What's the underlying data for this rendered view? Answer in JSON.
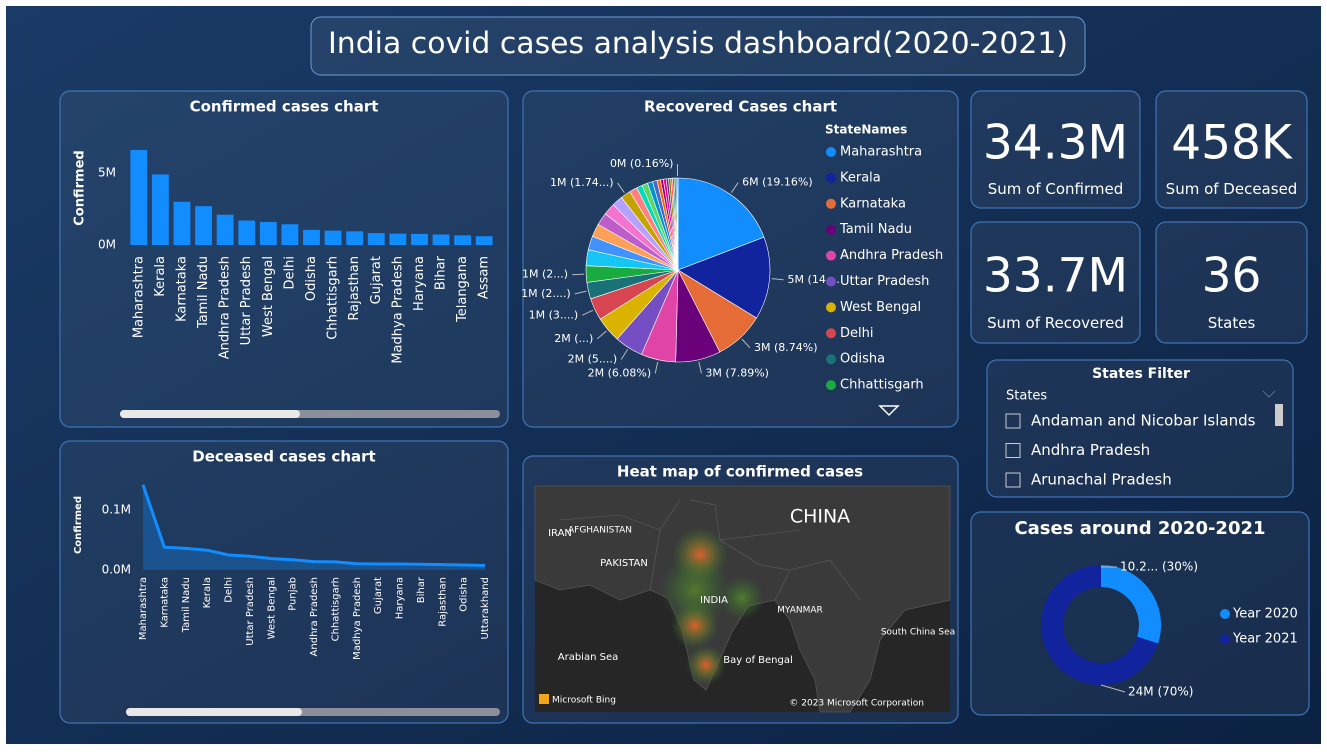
{
  "title": "India covid cases analysis dashboard(2020-2021)",
  "chart_data": [
    {
      "type": "bar",
      "title": "Confirmed cases chart",
      "ylabel": "Confirmed",
      "color": "#118DFF",
      "categories": [
        "Maharashtra",
        "Kerala",
        "Karnataka",
        "Tamil Nadu",
        "Andhra Pradesh",
        "Uttar Pradesh",
        "West Bengal",
        "Delhi",
        "Odisha",
        "Chhattisgarh",
        "Rajasthan",
        "Gujarat",
        "Madhya Pradesh",
        "Haryana",
        "Bihar",
        "Telangana",
        "Assam"
      ],
      "values": [
        6600000,
        4900000,
        3000000,
        2700000,
        2100000,
        1700000,
        1600000,
        1440000,
        1050000,
        1000000,
        950000,
        830000,
        790000,
        770000,
        730000,
        670000,
        610000
      ],
      "ylim": [
        0,
        7000000
      ],
      "yticks": [
        {
          "value": 0,
          "label": "0M"
        },
        {
          "value": 5000000,
          "label": "5M"
        }
      ]
    },
    {
      "type": "line",
      "title": "Deceased cases chart",
      "ylabel": "Confirmed",
      "color": "#118DFF",
      "categories": [
        "Maharashtra",
        "Karnataka",
        "Tamil Nadu",
        "Kerala",
        "Delhi",
        "Uttar Pradesh",
        "West Bengal",
        "Punjab",
        "Andhra Pradesh",
        "Chhattisgarh",
        "Madhya Pradesh",
        "Gujarat",
        "Haryana",
        "Bihar",
        "Rajasthan",
        "Odisha",
        "Uttarakhand"
      ],
      "values": [
        142000,
        38000,
        36000,
        33000,
        25000,
        23000,
        19000,
        17000,
        14000,
        13500,
        10500,
        10000,
        10000,
        9600,
        9000,
        8400,
        7400
      ],
      "ylim": [
        0,
        150000
      ],
      "yticks": [
        {
          "value": 0,
          "label": "0.0M"
        },
        {
          "value": 100000,
          "label": "0.1M"
        }
      ]
    },
    {
      "type": "pie",
      "title": "Recovered Cases chart",
      "legend_title": "StateNames",
      "categories": [
        "Maharashtra",
        "Kerala",
        "Karnataka",
        "Tamil Nadu",
        "Andhra Pradesh",
        "Uttar Pradesh",
        "West Bengal",
        "Delhi",
        "Odisha",
        "Chhattisgarh",
        null,
        null,
        null,
        null,
        null,
        null,
        null,
        null,
        null,
        null,
        null,
        null,
        null,
        null,
        null,
        null,
        null,
        null,
        null,
        null,
        null,
        null
      ],
      "values": [
        19.16,
        14.5,
        8.74,
        7.89,
        6.08,
        5.0,
        4.5,
        3.9,
        2.9,
        2.9,
        2.8,
        2.4,
        2.3,
        2.2,
        2.1,
        1.9,
        1.74,
        1.4,
        1.0,
        1.0,
        0.9,
        0.8,
        0.6,
        0.5,
        0.5,
        0.4,
        0.4,
        0.3,
        0.3,
        0.3,
        0.2,
        0.16
      ],
      "value_labels": [
        "6M (19.16%)",
        "5M (14....",
        "3M (8.74%)",
        "3M (7.89%)",
        "2M (6.08%)",
        "2M (5....)",
        "2M (...)",
        "1M (3....)",
        "1M (2....)",
        "1M (2...)",
        null,
        null,
        null,
        null,
        null,
        null,
        "1M (1.74...)",
        null,
        null,
        null,
        null,
        null,
        null,
        null,
        null,
        null,
        null,
        null,
        null,
        null,
        null,
        "0M (0.16%)"
      ],
      "colors": [
        "#118DFF",
        "#12239E",
        "#E66C37",
        "#6B007B",
        "#E044A7",
        "#744EC2",
        "#D9B300",
        "#D64550",
        "#197278",
        "#1AAB40",
        "#15C6F4",
        "#4092FF",
        "#FFA058",
        "#BE5DC9",
        "#F472D0",
        "#B5A1FF",
        "#C4A200",
        "#FF8080",
        "#00DBBC",
        "#5BD667",
        "#0091D5",
        "#4668C5",
        "#FF6300",
        "#99008A",
        "#EC008C",
        "#533285",
        "#99700A",
        "#FF4141",
        "#1F9A85",
        "#25891C",
        "#0057A2",
        "#002050"
      ]
    },
    {
      "type": "donut",
      "title": "Cases around 2020-2021",
      "categories": [
        "Year 2020",
        "Year 2021"
      ],
      "values": [
        30,
        70
      ],
      "value_labels": [
        "10.2... (30%)",
        "24M (70%)"
      ],
      "colors": [
        "#118DFF",
        "#12239E"
      ]
    }
  ],
  "cards": [
    {
      "value": "34.3M",
      "label": "Sum of Confirmed"
    },
    {
      "value": "458K",
      "label": "Sum of Deceased"
    },
    {
      "value": "33.7M",
      "label": "Sum of Recovered"
    },
    {
      "value": "36",
      "label": "States"
    }
  ],
  "states_filter": {
    "title": "States Filter",
    "placeholder": "States",
    "items": [
      "Andaman and Nicobar Islands",
      "Andhra Pradesh",
      "Arunachal Pradesh"
    ]
  },
  "heat_map": {
    "title": "Heat map of confirmed cases",
    "places": [
      "CHINA",
      "INDIA",
      "PAKISTAN",
      "AFGHANISTAN",
      "IRAN",
      "MYANMAR",
      "Arabian Sea",
      "Bay of Bengal",
      "South China Sea"
    ],
    "logo": "Microsoft Bing",
    "copyright": "© 2023 Microsoft Corporation"
  }
}
